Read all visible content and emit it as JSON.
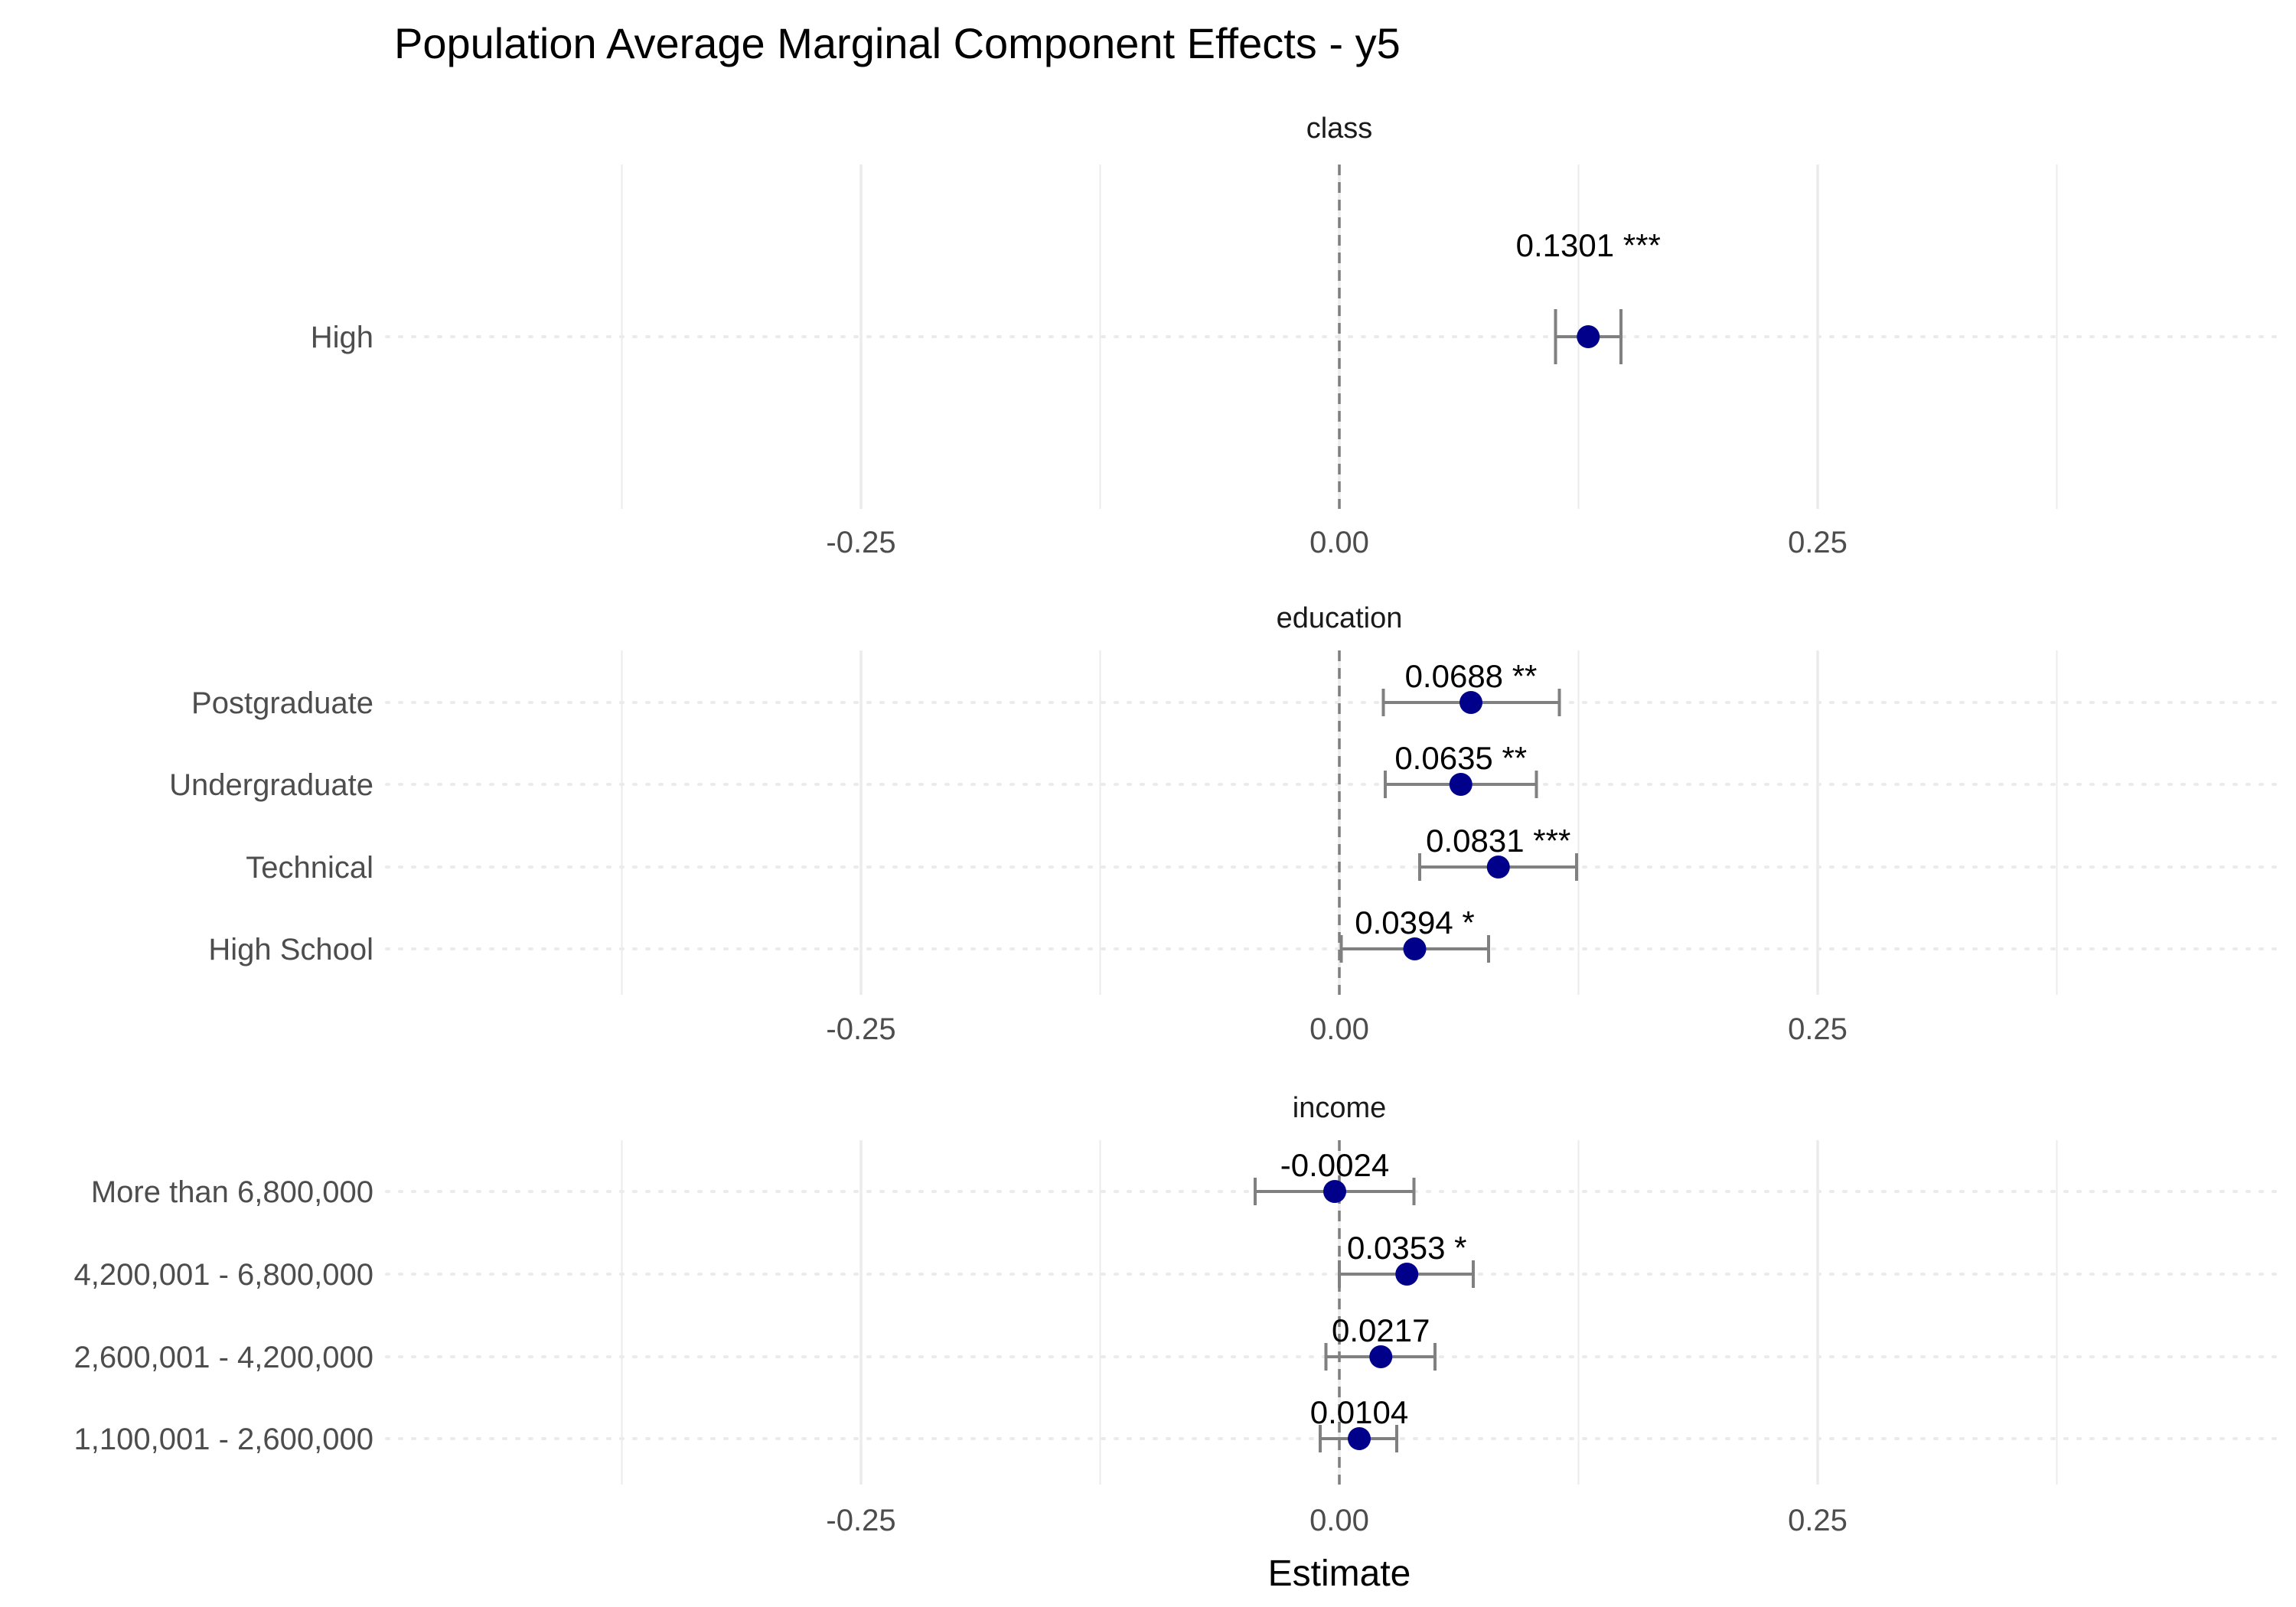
{
  "chart_data": {
    "type": "forest",
    "title": "Population Average Marginal Component Effects - y5",
    "xlabel": "Estimate",
    "xlim": [
      -0.4,
      0.4
    ],
    "xticks": [
      -0.25,
      0.0,
      0.25
    ],
    "xtick_labels": [
      "-0.25",
      "0.00",
      "0.25"
    ],
    "reference_line": 0,
    "colors": {
      "point": "#00008B",
      "errorbar": "#808080",
      "refline": "#7f7f7f",
      "grid": "#ebebeb"
    },
    "panels": [
      {
        "name": "class",
        "rows": [
          {
            "label": "High",
            "estimate": 0.1301,
            "lower": 0.113,
            "upper": 0.1472,
            "annotation": "0.1301 ***"
          }
        ]
      },
      {
        "name": "education",
        "rows": [
          {
            "label": "Postgraduate",
            "estimate": 0.0688,
            "lower": 0.023,
            "upper": 0.115,
            "annotation": "0.0688 **"
          },
          {
            "label": "Undergraduate",
            "estimate": 0.0635,
            "lower": 0.024,
            "upper": 0.103,
            "annotation": "0.0635 **"
          },
          {
            "label": "Technical",
            "estimate": 0.0831,
            "lower": 0.042,
            "upper": 0.124,
            "annotation": "0.0831 ***"
          },
          {
            "label": "High School",
            "estimate": 0.0394,
            "lower": 0.001,
            "upper": 0.078,
            "annotation": "0.0394 *"
          }
        ]
      },
      {
        "name": "income",
        "rows": [
          {
            "label": "More than 6,800,000",
            "estimate": -0.0024,
            "lower": -0.044,
            "upper": 0.039,
            "annotation": "-0.0024"
          },
          {
            "label": "4,200,001 - 6,800,000",
            "estimate": 0.0353,
            "lower": 0.0,
            "upper": 0.07,
            "annotation": "0.0353 *"
          },
          {
            "label": "2,600,001 - 4,200,000",
            "estimate": 0.0217,
            "lower": -0.007,
            "upper": 0.05,
            "annotation": "0.0217"
          },
          {
            "label": "1,100,001 - 2,600,000",
            "estimate": 0.0104,
            "lower": -0.01,
            "upper": 0.03,
            "annotation": "0.0104"
          }
        ]
      }
    ]
  }
}
